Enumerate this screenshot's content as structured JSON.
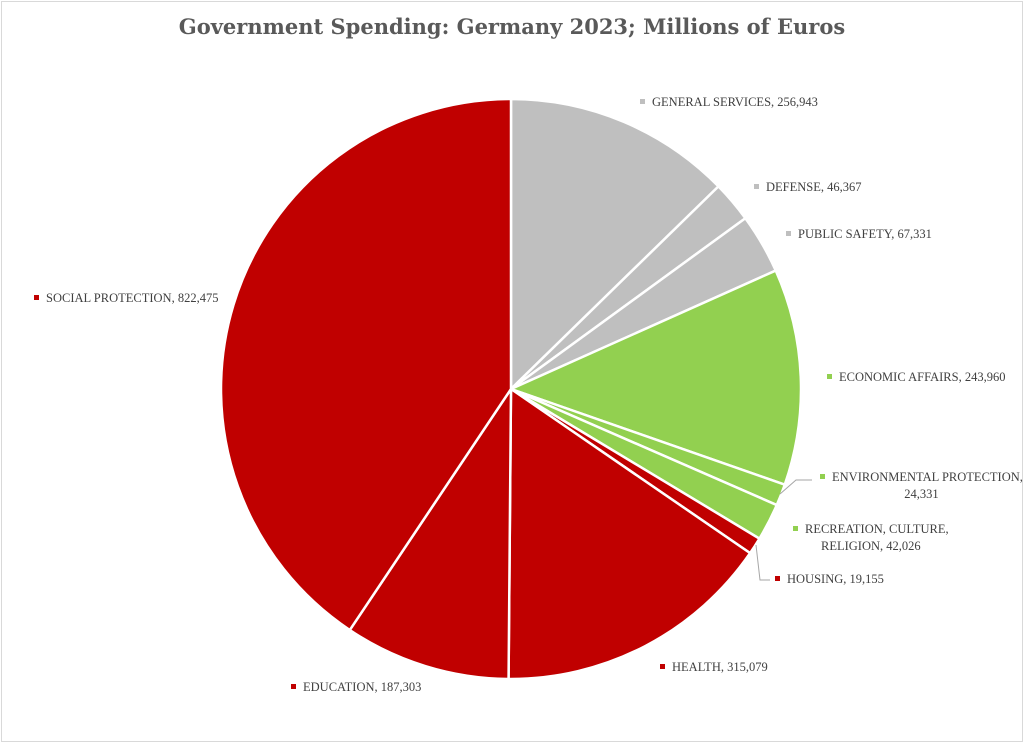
{
  "chart_data": {
    "type": "pie",
    "title": "Government Spending: Germany 2023; Millions of Euros",
    "start_angle": "top",
    "direction": "clockwise",
    "slices": [
      {
        "label": "GENERAL SERVICES",
        "value": 256943,
        "display": "256,943",
        "color": "#bfbfbf"
      },
      {
        "label": "DEFENSE",
        "value": 46367,
        "display": "46,367",
        "color": "#bfbfbf"
      },
      {
        "label": "PUBLIC SAFETY",
        "value": 67331,
        "display": "67,331",
        "color": "#bfbfbf"
      },
      {
        "label": "ECONOMIC AFFAIRS",
        "value": 243960,
        "display": "243,960",
        "color": "#92d050"
      },
      {
        "label": "ENVIRONMENTAL PROTECTION",
        "value": 24331,
        "display": "24,331",
        "color": "#92d050"
      },
      {
        "label": "RECREATION, CULTURE, RELIGION",
        "value": 42026,
        "display": "42,026",
        "color": "#92d050"
      },
      {
        "label": "HOUSING",
        "value": 19155,
        "display": "19,155",
        "color": "#c00000"
      },
      {
        "label": "HEALTH",
        "value": 315079,
        "display": "315,079",
        "color": "#c00000"
      },
      {
        "label": "EDUCATION",
        "value": 187303,
        "display": "187,303",
        "color": "#c00000"
      },
      {
        "label": "SOCIAL PROTECTION",
        "value": 822475,
        "display": "822,475",
        "color": "#c00000"
      }
    ]
  }
}
